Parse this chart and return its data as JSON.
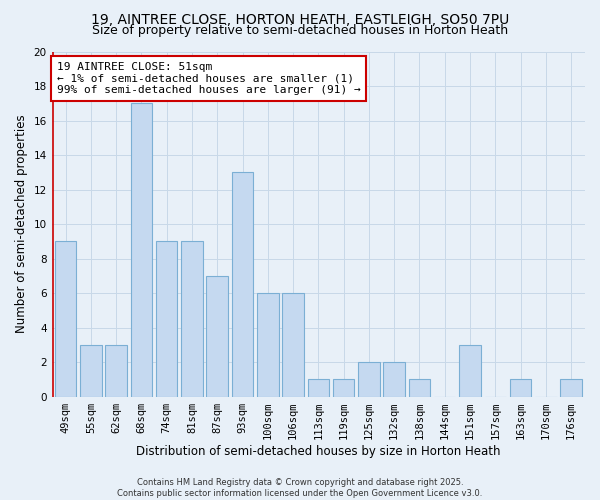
{
  "title_line1": "19, AINTREE CLOSE, HORTON HEATH, EASTLEIGH, SO50 7PU",
  "title_line2": "Size of property relative to semi-detached houses in Horton Heath",
  "xlabel": "Distribution of semi-detached houses by size in Horton Heath",
  "ylabel": "Number of semi-detached properties",
  "categories": [
    "49sqm",
    "55sqm",
    "62sqm",
    "68sqm",
    "74sqm",
    "81sqm",
    "87sqm",
    "93sqm",
    "100sqm",
    "106sqm",
    "113sqm",
    "119sqm",
    "125sqm",
    "132sqm",
    "138sqm",
    "144sqm",
    "151sqm",
    "157sqm",
    "163sqm",
    "170sqm",
    "176sqm"
  ],
  "values": [
    9,
    3,
    3,
    17,
    9,
    9,
    7,
    13,
    6,
    6,
    1,
    1,
    2,
    2,
    1,
    0,
    3,
    0,
    1,
    0,
    1
  ],
  "bar_color": "#c5d9f0",
  "bar_edgecolor": "#7bafd4",
  "annotation_title": "19 AINTREE CLOSE: 51sqm",
  "annotation_line1": "← 1% of semi-detached houses are smaller (1)",
  "annotation_line2": "99% of semi-detached houses are larger (91) →",
  "annotation_box_color": "#ffffff",
  "annotation_box_edgecolor": "#cc0000",
  "vline_color": "#cc0000",
  "ylim": [
    0,
    20
  ],
  "yticks": [
    0,
    2,
    4,
    6,
    8,
    10,
    12,
    14,
    16,
    18,
    20
  ],
  "grid_color": "#c8d8e8",
  "bg_color": "#e8f0f8",
  "footer": "Contains HM Land Registry data © Crown copyright and database right 2025.\nContains public sector information licensed under the Open Government Licence v3.0.",
  "title_fontsize": 10,
  "subtitle_fontsize": 9,
  "axis_fontsize": 8.5,
  "tick_fontsize": 7.5,
  "annotation_fontsize": 8,
  "footer_fontsize": 6
}
